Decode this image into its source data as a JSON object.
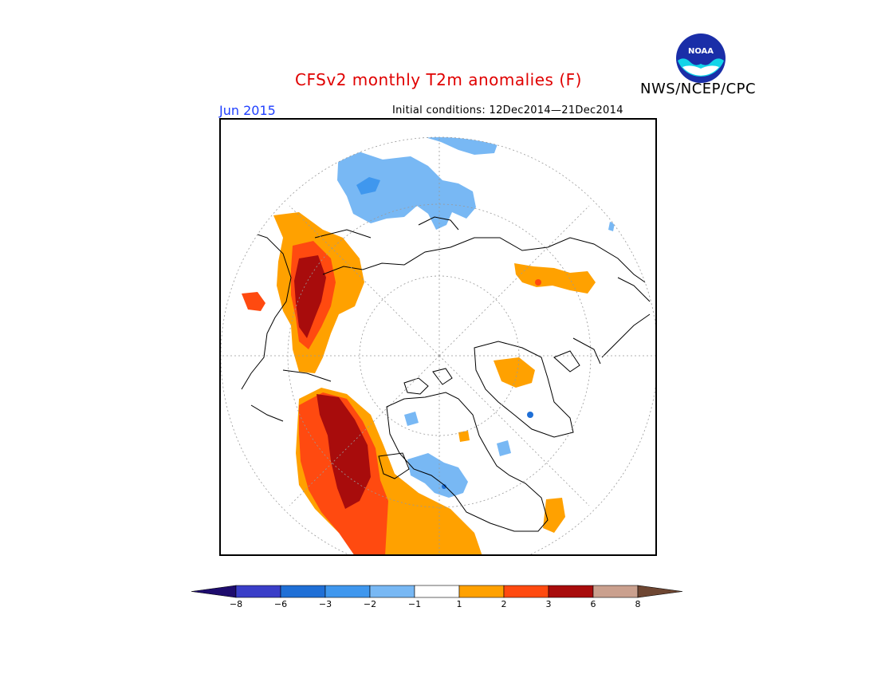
{
  "header": {
    "title": "CFSv2 monthly T2m anomalies (F)",
    "organization": "NWS/NCEP/CPC",
    "target_month": "Jun 2015",
    "initial_conditions": "Initial conditions: 12Dec2014—21Dec2014"
  },
  "logo": {
    "text": "NOAA"
  },
  "legend": {
    "ticks": [
      "−8",
      "−6",
      "−3",
      "−2",
      "−1",
      "1",
      "2",
      "3",
      "6",
      "8"
    ],
    "colors": [
      "#1e0c6e",
      "#3a3ec8",
      "#1f6fd6",
      "#3f97ee",
      "#78b8f4",
      "#ffffff",
      "#ffa100",
      "#ff4a10",
      "#a80c0c",
      "#caa08e",
      "#6e4632"
    ]
  },
  "map": {
    "projection": "north-polar-stereographic",
    "anomaly_colors": {
      "cold_light": "#78b8f4",
      "cold_medium": "#3f97ee",
      "cold_dark": "#1f6fd6",
      "warm_light": "#ffa100",
      "warm_medium": "#ff4a10",
      "warm_dark": "#a80c0c"
    }
  }
}
